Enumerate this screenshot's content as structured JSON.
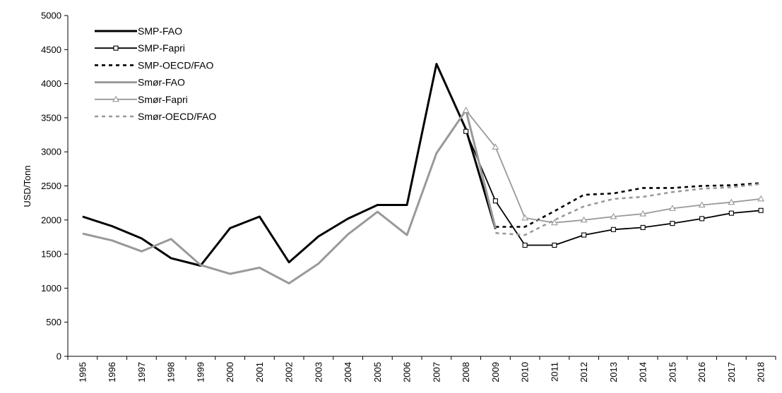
{
  "chart_data": {
    "type": "line",
    "title": "",
    "xlabel": "",
    "ylabel": "USD/Tonn",
    "ylim": [
      0,
      5000
    ],
    "yticks": [
      0,
      500,
      1000,
      1500,
      2000,
      2500,
      3000,
      3500,
      4000,
      4500,
      5000
    ],
    "grid": false,
    "legend_position": "top-left",
    "categories": [
      "1995",
      "1996",
      "1997",
      "1998",
      "1999",
      "2000",
      "2001",
      "2002",
      "2003",
      "2004",
      "2005",
      "2006",
      "2007",
      "2008",
      "2009",
      "2010",
      "2011",
      "2012",
      "2013",
      "2014",
      "2015",
      "2016",
      "2017",
      "2018"
    ],
    "series": [
      {
        "name": "SMP-FAO",
        "color": "#000000",
        "style": "thick",
        "marker": "none",
        "values": [
          2050,
          1910,
          1730,
          1440,
          1330,
          1880,
          2050,
          1380,
          1760,
          2020,
          2220,
          2220,
          4290,
          3330,
          1870,
          null,
          null,
          null,
          null,
          null,
          null,
          null,
          null,
          null
        ]
      },
      {
        "name": "SMP-Fapri",
        "color": "#000000",
        "style": "thin",
        "marker": "square",
        "values": [
          null,
          null,
          null,
          null,
          null,
          null,
          null,
          null,
          null,
          null,
          null,
          null,
          null,
          3300,
          2280,
          1630,
          1630,
          1780,
          1860,
          1890,
          1950,
          2020,
          2100,
          2140
        ]
      },
      {
        "name": "SMP-OECD/FAO",
        "color": "#000000",
        "style": "dashed",
        "marker": "none",
        "values": [
          null,
          null,
          null,
          null,
          null,
          null,
          null,
          null,
          null,
          null,
          null,
          null,
          null,
          null,
          1900,
          1900,
          2130,
          2370,
          2390,
          2470,
          2470,
          2500,
          2510,
          2540
        ]
      },
      {
        "name": "Smør-FAO",
        "color": "#999999",
        "style": "thick",
        "marker": "none",
        "values": [
          1800,
          1700,
          1540,
          1720,
          1340,
          1210,
          1300,
          1070,
          1360,
          1790,
          2120,
          1780,
          2980,
          3610,
          1880,
          null,
          null,
          null,
          null,
          null,
          null,
          null,
          null,
          null
        ]
      },
      {
        "name": "Smør-Fapri",
        "color": "#999999",
        "style": "thin",
        "marker": "triangle",
        "values": [
          null,
          null,
          null,
          null,
          null,
          null,
          null,
          null,
          null,
          null,
          null,
          null,
          null,
          3610,
          3070,
          2030,
          1960,
          2000,
          2050,
          2090,
          2170,
          2220,
          2260,
          2310
        ]
      },
      {
        "name": "Smør-OECD/FAO",
        "color": "#999999",
        "style": "dashed",
        "marker": "none",
        "values": [
          null,
          null,
          null,
          null,
          null,
          null,
          null,
          null,
          null,
          null,
          null,
          null,
          null,
          null,
          1810,
          1780,
          2000,
          2200,
          2310,
          2340,
          2410,
          2460,
          2480,
          2530
        ]
      }
    ]
  }
}
